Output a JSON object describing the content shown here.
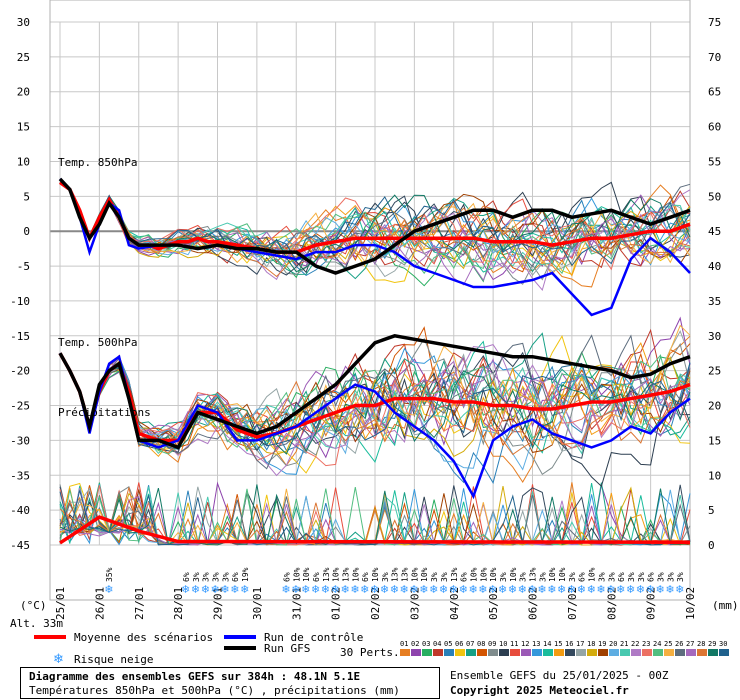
{
  "chart_data": {
    "type": "line",
    "xlabel": "(°C)",
    "ylabel_right": "(mm)",
    "altitude": "Alt. 33m",
    "x_ticks": [
      "25/01",
      "26/01",
      "27/01",
      "28/01",
      "29/01",
      "30/01",
      "31/01",
      "01/02",
      "02/02",
      "03/02",
      "04/02",
      "05/02",
      "06/02",
      "07/02",
      "08/02",
      "09/02",
      "10/02"
    ],
    "ylim_left": [
      -45,
      30
    ],
    "ylim_right": [
      0,
      75
    ],
    "y_ticks_left": [
      30,
      25,
      20,
      15,
      10,
      5,
      0,
      -5,
      -10,
      -15,
      -20,
      -25,
      -30,
      -35,
      -40,
      -45
    ],
    "y_ticks_right": [
      75,
      70,
      65,
      60,
      55,
      50,
      45,
      40,
      35,
      30,
      25,
      20,
      15,
      10,
      5,
      0
    ],
    "panel_labels": [
      "Temp. 850hPa",
      "Temp. 500hPa",
      "Précipitations"
    ],
    "grid": true,
    "series": [
      {
        "name": "Moyenne des scénarios",
        "color": "#ff0000",
        "panel": "850hPa",
        "x_days": [
          0,
          0.25,
          0.5,
          0.75,
          1,
          1.25,
          1.5,
          1.75,
          2,
          2.25,
          2.5,
          2.75,
          3,
          3.25,
          3.5,
          3.75,
          4,
          4.5,
          5,
          5.5,
          6,
          6.5,
          7,
          7.5,
          8,
          8.5,
          9,
          9.5,
          10,
          10.5,
          11,
          11.5,
          12,
          12.5,
          13,
          13.5,
          14,
          14.5,
          15,
          15.5,
          16
        ],
        "values": [
          7,
          6,
          3,
          -1,
          2,
          4.5,
          2,
          -1,
          -2,
          -2,
          -2.5,
          -2,
          -1.5,
          -1.5,
          -1,
          -1.5,
          -1.5,
          -2,
          -2.5,
          -3,
          -3,
          -2,
          -1.5,
          -1,
          -1,
          -1,
          -1,
          -1,
          -1,
          -1,
          -1.5,
          -1.5,
          -1.5,
          -2,
          -1.5,
          -1,
          -1,
          -0.5,
          0,
          0,
          1
        ]
      },
      {
        "name": "Run de contrôle",
        "color": "#0000ff",
        "panel": "850hPa",
        "x_days": [
          0,
          0.25,
          0.5,
          0.75,
          1,
          1.25,
          1.5,
          1.75,
          2,
          2.5,
          3,
          3.5,
          4,
          4.5,
          5,
          5.5,
          6,
          6.5,
          7,
          7.5,
          8,
          8.5,
          9,
          9.5,
          10,
          10.5,
          11,
          11.5,
          12,
          12.5,
          13,
          13.5,
          14,
          14.5,
          15,
          15.5,
          16
        ],
        "values": [
          7.5,
          6,
          2,
          -3,
          1,
          4,
          3,
          -2,
          -2.5,
          -2,
          -2,
          -2.5,
          -2,
          -2.5,
          -3,
          -3.5,
          -4,
          -3,
          -3,
          -2,
          -2,
          -3,
          -5,
          -6,
          -7,
          -8,
          -8,
          -7.5,
          -7,
          -6,
          -9,
          -12,
          -11,
          -4,
          -1,
          -3,
          -6
        ]
      },
      {
        "name": "Run GFS",
        "color": "#000000",
        "panel": "850hPa",
        "x_days": [
          0,
          0.25,
          0.5,
          0.75,
          1,
          1.25,
          1.5,
          1.75,
          2,
          2.5,
          3,
          3.5,
          4,
          4.5,
          5,
          5.5,
          6,
          6.5,
          7,
          7.5,
          8,
          8.5,
          9,
          9.5,
          10,
          10.5,
          11,
          11.5,
          12,
          12.5,
          13,
          13.5,
          14,
          14.5,
          15,
          15.5,
          16
        ],
        "values": [
          7.5,
          6,
          2,
          -1,
          1,
          4,
          2,
          -1,
          -2,
          -2,
          -2,
          -2.5,
          -2,
          -2.5,
          -2.5,
          -3,
          -3,
          -5,
          -6,
          -5,
          -4,
          -2,
          0,
          1,
          2,
          3,
          3,
          2,
          3,
          3,
          2,
          2.5,
          3,
          2,
          1,
          2,
          3
        ]
      },
      {
        "name": "Moyenne 500hPa",
        "color": "#ff0000",
        "panel": "500hPa",
        "x_days": [
          0,
          0.25,
          0.5,
          0.75,
          1,
          1.25,
          1.5,
          1.75,
          2,
          2.5,
          3,
          3.5,
          4,
          4.5,
          5,
          5.5,
          6,
          6.5,
          7,
          7.5,
          8,
          8.5,
          9,
          9.5,
          10,
          10.5,
          11,
          11.5,
          12,
          12.5,
          13,
          13.5,
          14,
          14.5,
          15,
          15.5,
          16
        ],
        "values": [
          -17.5,
          -20,
          -23,
          -28,
          -23,
          -20,
          -19,
          -23,
          -29,
          -30,
          -30,
          -26,
          -26,
          -28.5,
          -29.5,
          -29,
          -28,
          -27,
          -26,
          -25,
          -25,
          -24,
          -24,
          -24,
          -24.5,
          -24.5,
          -25,
          -25,
          -25.5,
          -25.5,
          -25,
          -24.5,
          -24.5,
          -24,
          -23.5,
          -23,
          -22
        ]
      },
      {
        "name": "Contrôle 500hPa",
        "color": "#0000ff",
        "panel": "500hPa",
        "x_days": [
          0,
          0.25,
          0.5,
          0.75,
          1,
          1.25,
          1.5,
          1.75,
          2,
          2.5,
          3,
          3.5,
          4,
          4.5,
          5,
          5.5,
          6,
          6.5,
          7,
          7.5,
          8,
          8.5,
          9,
          9.5,
          10,
          10.5,
          11,
          11.5,
          12,
          12.5,
          13,
          13.5,
          14,
          14.5,
          15,
          15.5,
          16
        ],
        "values": [
          -17.5,
          -20,
          -23,
          -29,
          -23,
          -19,
          -18,
          -24,
          -30,
          -31,
          -30,
          -25,
          -26,
          -30,
          -30,
          -29,
          -28,
          -26,
          -24,
          -22,
          -23,
          -26,
          -28,
          -30,
          -33,
          -38,
          -30,
          -28,
          -27,
          -29,
          -30,
          -31,
          -30,
          -28,
          -29,
          -26,
          -24
        ]
      },
      {
        "name": "GFS 500hPa",
        "color": "#000000",
        "panel": "500hPa",
        "x_days": [
          0,
          0.25,
          0.5,
          0.75,
          1,
          1.25,
          1.5,
          1.75,
          2,
          2.5,
          3,
          3.5,
          4,
          4.5,
          5,
          5.5,
          6,
          6.5,
          7,
          7.5,
          8,
          8.5,
          9,
          9.5,
          10,
          10.5,
          11,
          11.5,
          12,
          12.5,
          13,
          13.5,
          14,
          14.5,
          15,
          15.5,
          16
        ],
        "values": [
          -17.5,
          -20,
          -23,
          -28,
          -22,
          -20,
          -19,
          -24,
          -30,
          -30,
          -31,
          -26,
          -27,
          -28,
          -29,
          -28,
          -26,
          -24,
          -22,
          -19,
          -16,
          -15,
          -15.5,
          -16,
          -16.5,
          -17,
          -17.5,
          -18,
          -18,
          -18.5,
          -19,
          -19.5,
          -20,
          -21,
          -20.5,
          -19,
          -18
        ]
      }
    ],
    "snow_risk": [
      {
        "x_day": 1.25,
        "pct": "35%"
      },
      {
        "x_day": 3.2,
        "pct": "6%"
      },
      {
        "x_day": 3.45,
        "pct": "3%"
      },
      {
        "x_day": 3.7,
        "pct": "3%"
      },
      {
        "x_day": 3.95,
        "pct": "3%"
      },
      {
        "x_day": 4.2,
        "pct": "3%"
      },
      {
        "x_day": 4.45,
        "pct": "6%"
      },
      {
        "x_day": 4.7,
        "pct": "19%"
      },
      {
        "x_day": 5.75,
        "pct": "6%"
      },
      {
        "x_day": 6.0,
        "pct": "10%"
      },
      {
        "x_day": 6.25,
        "pct": "10%"
      },
      {
        "x_day": 6.5,
        "pct": "6%"
      },
      {
        "x_day": 6.75,
        "pct": "13%"
      },
      {
        "x_day": 7.0,
        "pct": "10%"
      },
      {
        "x_day": 7.25,
        "pct": "13%"
      },
      {
        "x_day": 7.5,
        "pct": "10%"
      },
      {
        "x_day": 7.75,
        "pct": "6%"
      },
      {
        "x_day": 8.0,
        "pct": "10%"
      },
      {
        "x_day": 8.25,
        "pct": "3%"
      },
      {
        "x_day": 8.5,
        "pct": "13%"
      },
      {
        "x_day": 8.75,
        "pct": "13%"
      },
      {
        "x_day": 9.0,
        "pct": "10%"
      },
      {
        "x_day": 9.25,
        "pct": "10%"
      },
      {
        "x_day": 9.5,
        "pct": "3%"
      },
      {
        "x_day": 9.75,
        "pct": "3%"
      },
      {
        "x_day": 10.0,
        "pct": "13%"
      },
      {
        "x_day": 10.25,
        "pct": "6%"
      },
      {
        "x_day": 10.5,
        "pct": "10%"
      },
      {
        "x_day": 10.75,
        "pct": "10%"
      },
      {
        "x_day": 11.0,
        "pct": "10%"
      },
      {
        "x_day": 11.25,
        "pct": "3%"
      },
      {
        "x_day": 11.5,
        "pct": "10%"
      },
      {
        "x_day": 11.75,
        "pct": "3%"
      },
      {
        "x_day": 12.0,
        "pct": "13%"
      },
      {
        "x_day": 12.25,
        "pct": "3%"
      },
      {
        "x_day": 12.5,
        "pct": "10%"
      },
      {
        "x_day": 12.75,
        "pct": "10%"
      },
      {
        "x_day": 13.0,
        "pct": "3%"
      },
      {
        "x_day": 13.25,
        "pct": "6%"
      },
      {
        "x_day": 13.5,
        "pct": "10%"
      },
      {
        "x_day": 13.75,
        "pct": "3%"
      },
      {
        "x_day": 14.0,
        "pct": "3%"
      },
      {
        "x_day": 14.25,
        "pct": "6%"
      },
      {
        "x_day": 14.5,
        "pct": "3%"
      },
      {
        "x_day": 14.75,
        "pct": "3%"
      },
      {
        "x_day": 15.0,
        "pct": "6%"
      },
      {
        "x_day": 15.25,
        "pct": "3%"
      },
      {
        "x_day": 15.5,
        "pct": "3%"
      },
      {
        "x_day": 15.75,
        "pct": "3%"
      }
    ]
  },
  "legend": {
    "mean": "Moyenne des scénarios",
    "control": "Run de contrôle",
    "gfs": "Run GFS",
    "snow": "Risque neige",
    "perts": "30 Perts.",
    "pert_numbers": [
      "01",
      "02",
      "03",
      "04",
      "05",
      "06",
      "07",
      "08",
      "09",
      "10",
      "11",
      "12",
      "13",
      "14",
      "15",
      "16",
      "17",
      "18",
      "19",
      "20",
      "21",
      "22",
      "23",
      "24",
      "25",
      "26",
      "27",
      "28",
      "29",
      "30"
    ],
    "pert_colors": [
      "#e67e22",
      "#8e44ad",
      "#27ae60",
      "#c0392b",
      "#2980b9",
      "#f1c40f",
      "#16a085",
      "#d35400",
      "#7f8c8d",
      "#2c3e50",
      "#e74c3c",
      "#9b59b6",
      "#3498db",
      "#1abc9c",
      "#f39c12",
      "#34495e",
      "#95a5a6",
      "#d4ac0d",
      "#a04000",
      "#5dade2",
      "#48c9b0",
      "#af7ac5",
      "#ec7063",
      "#52be80",
      "#f5b041",
      "#5d6d7e",
      "#a569bd",
      "#dc7633",
      "#117864",
      "#1f618d"
    ]
  },
  "footer": {
    "title": "Diagramme des ensembles GEFS sur 384h : 48.1N 5.1E",
    "subtitle": "Températures 850hPa et 500hPa (°C) , précipitations (mm)",
    "run": "Ensemble GEFS du 25/01/2025 - 00Z",
    "copyright": "Copyright 2025 Meteociel.fr"
  }
}
